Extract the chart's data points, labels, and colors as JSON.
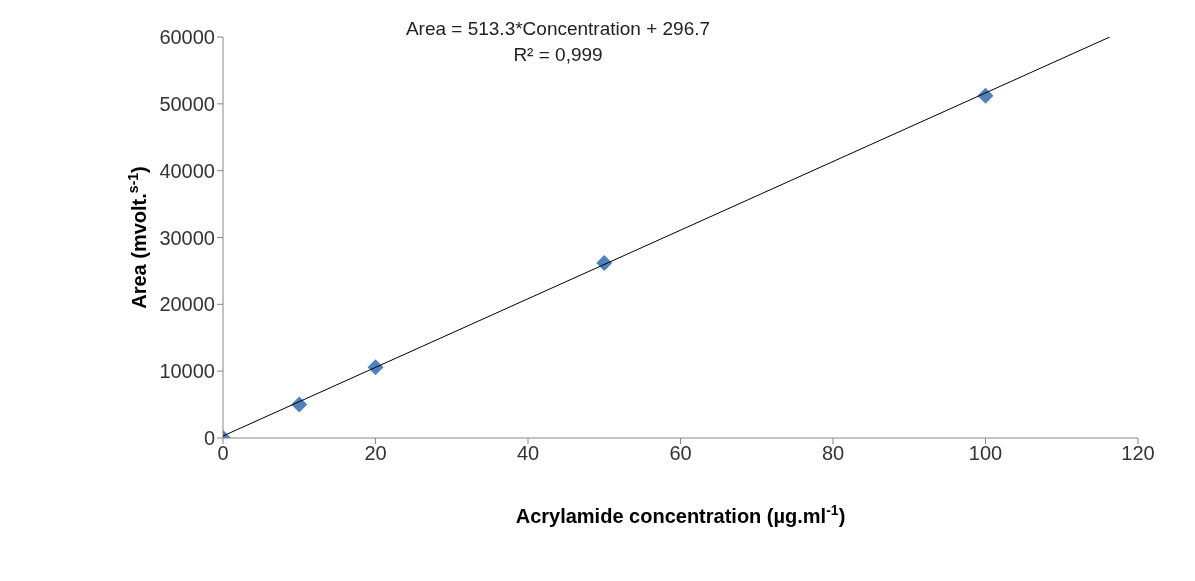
{
  "chart_data": {
    "type": "scatter",
    "xlabel": "Acrylamide concentration (µg.ml$^{-1}$)",
    "ylabel": "Area (mvolt.$^{s-1}$)",
    "annotations": [
      "Area = 513.3*Concentration + 296.7",
      "R² = 0,999"
    ],
    "series": [
      {
        "color": "#4f81bd",
        "x": [
          0,
          10,
          20,
          50,
          100
        ],
        "values": [
          0,
          5000,
          10600,
          26200,
          51200
        ]
      },
      {
        "type": "line",
        "marker": "none",
        "color": "#000000",
        "x": [
          0,
          116.3
        ],
        "values": [
          300,
          60000
        ]
      }
    ],
    "xlim": [
      0,
      120
    ],
    "xticks": [
      0,
      20,
      40,
      60,
      80,
      100,
      120
    ],
    "ylim": [
      0,
      60000
    ],
    "yticks": [
      0,
      10000,
      20000,
      30000,
      40000,
      50000,
      60000
    ],
    "grid": false,
    "marker": "diamond",
    "line_style": "solid"
  }
}
